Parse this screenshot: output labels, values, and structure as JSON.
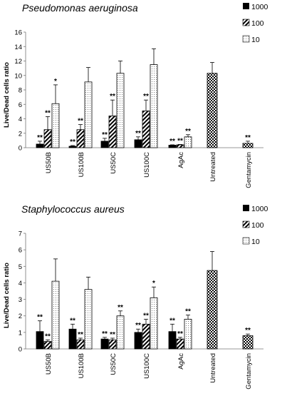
{
  "chart_data": [
    {
      "type": "bar",
      "title": "Pseudomonas aeruginosa",
      "ylabel": "Live/Dead cells ratio",
      "ylim": [
        0,
        16
      ],
      "yticks": [
        0,
        2,
        4,
        6,
        8,
        10,
        12,
        14,
        16
      ],
      "categories": [
        "US50B",
        "US100B",
        "US50C",
        "US100C",
        "AgAc",
        "Untreated",
        "Gentamycin"
      ],
      "legend_position": "top-right",
      "series": [
        {
          "name": "1000",
          "pattern": "solid-black",
          "values": [
            0.5,
            0.2,
            0.9,
            1.1,
            0.35,
            null,
            null
          ],
          "errors": [
            0.4,
            0.1,
            0.4,
            0.4,
            0.05,
            null,
            null
          ],
          "labels": [
            "**",
            "**",
            "**",
            "**",
            "**",
            "",
            ""
          ]
        },
        {
          "name": "100",
          "pattern": "diagonal-hatch",
          "values": [
            2.5,
            2.5,
            4.4,
            5.1,
            0.4,
            null,
            null
          ],
          "errors": [
            1.8,
            0.7,
            2.2,
            1.5,
            0.05,
            null,
            null
          ],
          "labels": [
            "**",
            "**",
            "**",
            "**",
            "**",
            "",
            ""
          ]
        },
        {
          "name": "10",
          "pattern": "dotted",
          "values": [
            6.1,
            9.1,
            10.3,
            11.5,
            1.5,
            null,
            null
          ],
          "errors": [
            2.6,
            2.0,
            1.7,
            2.2,
            0.3,
            null,
            null
          ],
          "labels": [
            "*",
            "",
            "",
            "",
            "**",
            "",
            ""
          ]
        },
        {
          "name": "",
          "pattern": "checker",
          "values": [
            null,
            null,
            null,
            null,
            null,
            10.3,
            0.6
          ],
          "errors": [
            null,
            null,
            null,
            null,
            null,
            1.5,
            0.3
          ],
          "labels": [
            "",
            "",
            "",
            "",
            "",
            "",
            "**"
          ]
        }
      ]
    },
    {
      "type": "bar",
      "title": "Staphylococcus aureus",
      "ylabel": "Live/Dead cells ratio",
      "ylim": [
        0,
        7
      ],
      "yticks": [
        0,
        1,
        2,
        3,
        4,
        5,
        6,
        7
      ],
      "categories": [
        "US50B",
        "US100B",
        "US50C",
        "US100C",
        "AgAc",
        "Untreated",
        "Gentamycin"
      ],
      "legend_position": "top-right",
      "series": [
        {
          "name": "1000",
          "pattern": "solid-black",
          "values": [
            1.05,
            1.2,
            0.6,
            1.0,
            1.05,
            null,
            null
          ],
          "errors": [
            0.65,
            0.3,
            0.1,
            0.2,
            0.45,
            null,
            null
          ],
          "labels": [
            "**",
            "**",
            "**",
            "**",
            "**",
            "",
            ""
          ]
        },
        {
          "name": "100",
          "pattern": "diagonal-hatch",
          "values": [
            0.45,
            0.55,
            0.55,
            1.5,
            0.6,
            null,
            null
          ],
          "errors": [
            0.1,
            0.1,
            0.1,
            0.3,
            0.1,
            null,
            null
          ],
          "labels": [
            "**",
            "**",
            "**",
            "**",
            "**",
            "",
            ""
          ]
        },
        {
          "name": "10",
          "pattern": "dotted",
          "values": [
            4.1,
            3.6,
            2.0,
            3.1,
            1.8,
            null,
            null
          ],
          "errors": [
            1.35,
            0.75,
            0.3,
            0.65,
            0.25,
            null,
            null
          ],
          "labels": [
            "",
            "",
            "**",
            "*",
            "**",
            "",
            ""
          ]
        },
        {
          "name": "",
          "pattern": "checker",
          "values": [
            null,
            null,
            null,
            null,
            null,
            4.75,
            0.8
          ],
          "errors": [
            null,
            null,
            null,
            null,
            null,
            1.15,
            0.1
          ],
          "labels": [
            "",
            "",
            "",
            "",
            "",
            "",
            "**"
          ]
        }
      ]
    }
  ]
}
